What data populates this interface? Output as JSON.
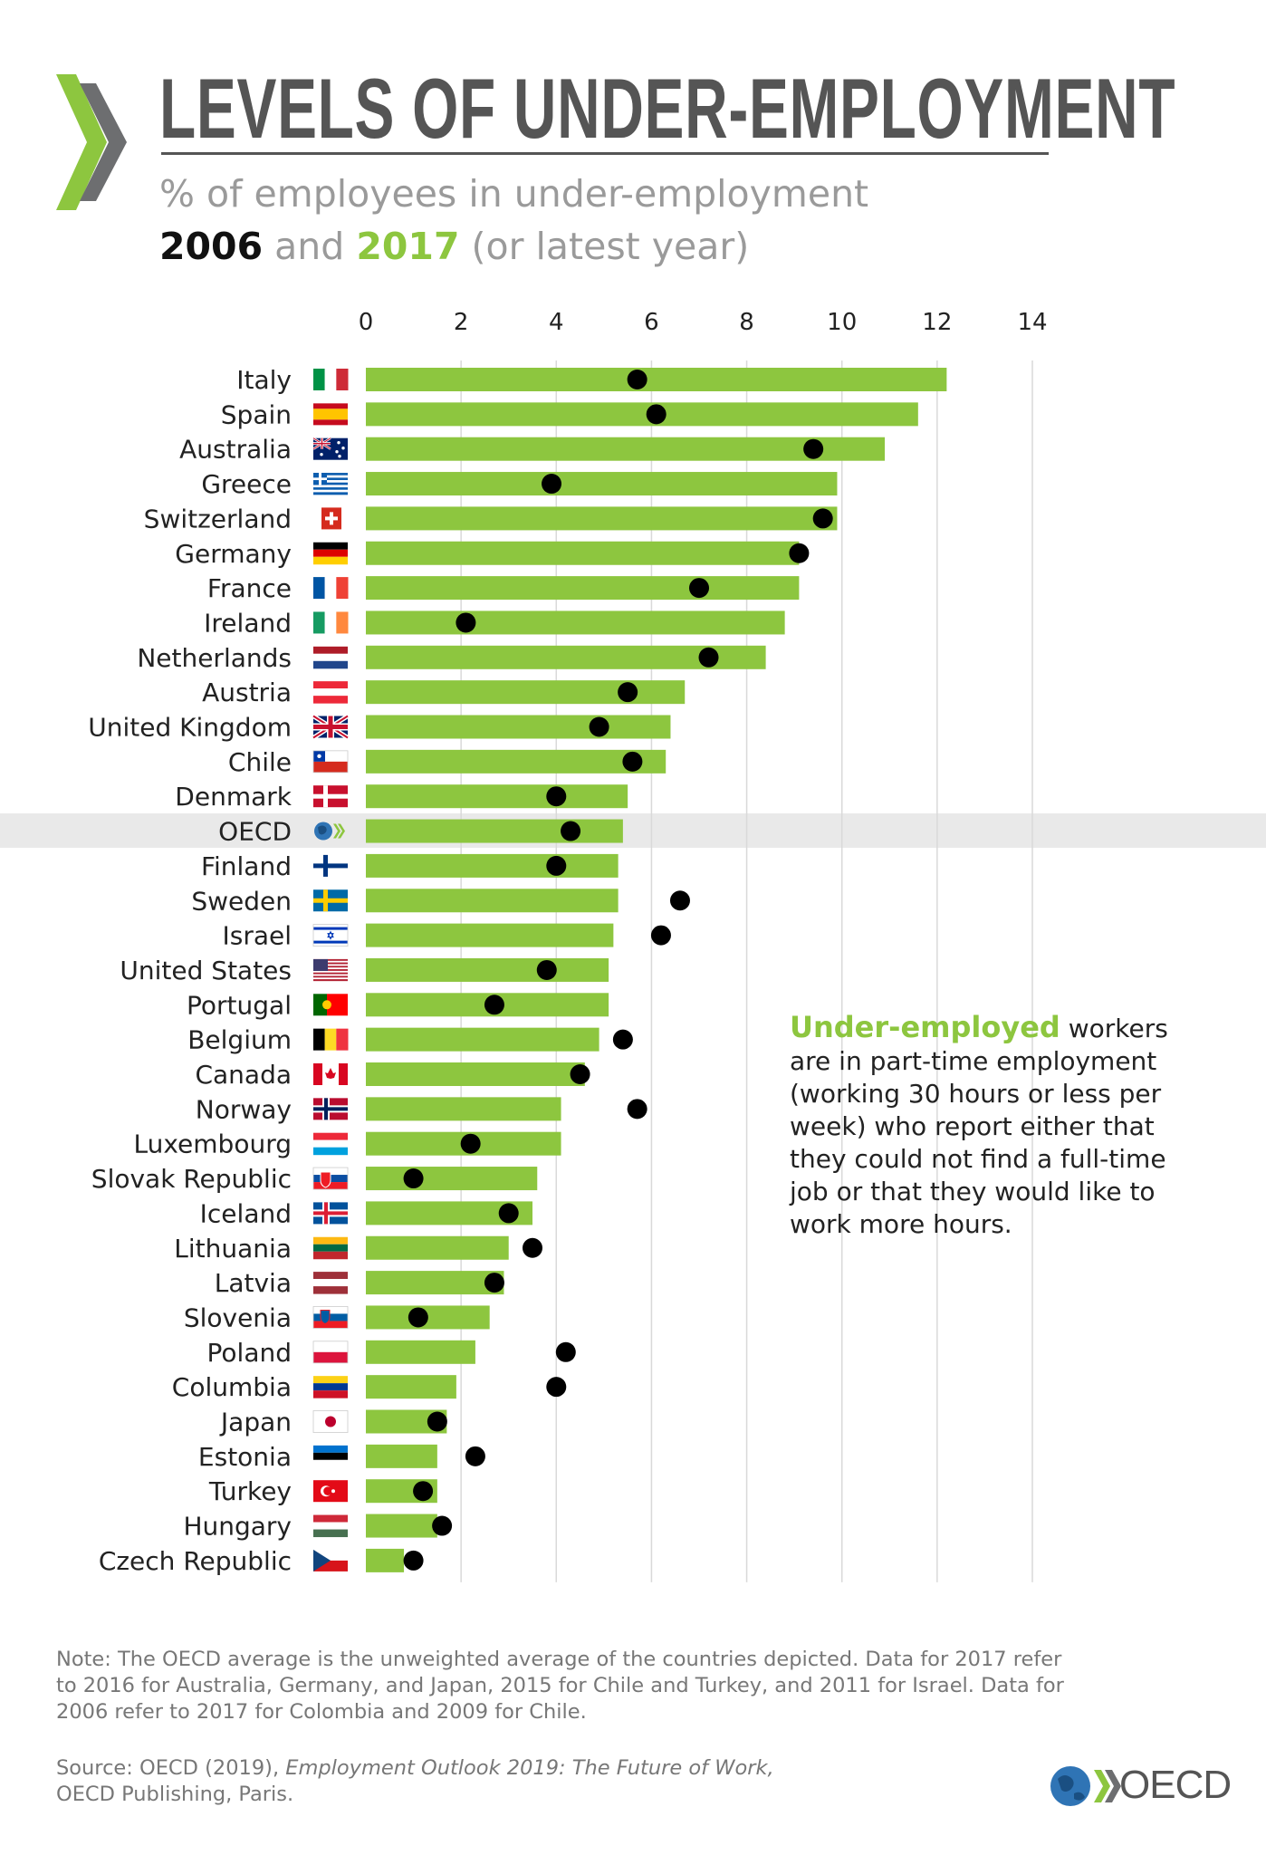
{
  "header": {
    "title": "LEVELS OF UNDER-EMPLOYMENT",
    "subtitle": "% of employees in under-employment",
    "year_a": "2006",
    "and": "and",
    "year_b": "2017",
    "latest": "(or latest year)"
  },
  "colors": {
    "bar_2017": "#8dc63f",
    "dot_2006": "#000000",
    "accent": "#8dc63f",
    "grid": "#d9d9d9"
  },
  "chart_data": {
    "type": "bar",
    "orientation": "horizontal",
    "xlim": [
      0,
      14
    ],
    "xticks": [
      "0",
      "2",
      "4",
      "6",
      "8",
      "10",
      "12",
      "14"
    ],
    "highlight": "OECD",
    "categories": [
      "Italy",
      "Spain",
      "Australia",
      "Greece",
      "Switzerland",
      "Germany",
      "France",
      "Ireland",
      "Netherlands",
      "Austria",
      "United Kingdom",
      "Chile",
      "Denmark",
      "OECD",
      "Finland",
      "Sweden",
      "Israel",
      "United States",
      "Portugal",
      "Belgium",
      "Canada",
      "Norway",
      "Luxembourg",
      "Slovak Republic",
      "Iceland",
      "Lithuania",
      "Latvia",
      "Slovenia",
      "Poland",
      "Columbia",
      "Japan",
      "Estonia",
      "Turkey",
      "Hungary",
      "Czech Republic"
    ],
    "series": [
      {
        "name": "2017",
        "style": "bar",
        "values": [
          12.2,
          11.6,
          10.9,
          9.9,
          9.9,
          9.1,
          9.1,
          8.8,
          8.4,
          6.7,
          6.4,
          6.3,
          5.5,
          5.4,
          5.3,
          5.3,
          5.2,
          5.1,
          5.1,
          4.9,
          4.6,
          4.1,
          4.1,
          3.6,
          3.5,
          3.0,
          2.9,
          2.6,
          2.3,
          1.9,
          1.7,
          1.5,
          1.5,
          1.5,
          0.8
        ]
      },
      {
        "name": "2006",
        "style": "dot",
        "values": [
          5.7,
          6.1,
          9.4,
          3.9,
          9.6,
          9.1,
          7.0,
          2.1,
          7.2,
          5.5,
          4.9,
          5.6,
          4.0,
          4.3,
          4.0,
          6.6,
          6.2,
          3.8,
          2.7,
          5.4,
          4.5,
          5.7,
          2.2,
          1.0,
          3.0,
          3.5,
          2.7,
          1.1,
          4.2,
          4.0,
          1.5,
          2.3,
          1.2,
          1.6,
          1.0
        ]
      }
    ]
  },
  "definition": {
    "highlight": "Under-employed",
    "text": " workers are in part-time employment (working 30 hours or less per week) who report either that they could not find a full-time job or that they would like to work more hours."
  },
  "footer": {
    "note": "Note: The OECD average is the unweighted average of the countries depicted. Data for 2017 refer to 2016 for Australia, Germany, and Japan, 2015 for Chile and Turkey, and 2011 for Israel. Data for 2006 refer to 2017 for Colombia and 2009 for Chile.",
    "source_prefix": "Source: OECD (2019), ",
    "source_title": "Employment Outlook 2019: The Future of Work,",
    "source_suffix": "OECD Publishing, Paris.",
    "logo_text": "OECD"
  },
  "flags": {
    "Italy": [
      "v",
      "#009246",
      "#ffffff",
      "#ce2b37"
    ],
    "Spain": [
      "h3",
      "#c60b1e",
      "#ffc400",
      "#c60b1e"
    ],
    "Australia": [
      "special-au"
    ],
    "Greece": [
      "stripes",
      "#0d5eaf",
      "#ffffff"
    ],
    "Switzerland": [
      "special-ch"
    ],
    "Germany": [
      "h",
      "#000000",
      "#dd0000",
      "#ffce00"
    ],
    "France": [
      "v",
      "#0055a4",
      "#ffffff",
      "#ef4135"
    ],
    "Ireland": [
      "v",
      "#169b62",
      "#ffffff",
      "#ff883e"
    ],
    "Netherlands": [
      "h",
      "#ae1c28",
      "#ffffff",
      "#21468b"
    ],
    "Austria": [
      "h",
      "#ed2939",
      "#ffffff",
      "#ed2939"
    ],
    "United Kingdom": [
      "special-uk"
    ],
    "Chile": [
      "special-cl"
    ],
    "Denmark": [
      "cross",
      "#c8102e",
      "#ffffff"
    ],
    "OECD": [
      "special-oecd"
    ],
    "Finland": [
      "cross",
      "#ffffff",
      "#003580"
    ],
    "Sweden": [
      "cross",
      "#006aa7",
      "#fecc00"
    ],
    "Israel": [
      "special-il"
    ],
    "United States": [
      "special-us"
    ],
    "Portugal": [
      "special-pt"
    ],
    "Belgium": [
      "v",
      "#000000",
      "#fdda24",
      "#ef3340"
    ],
    "Canada": [
      "special-ca"
    ],
    "Norway": [
      "cross2",
      "#ba0c2f",
      "#ffffff",
      "#00205b"
    ],
    "Luxembourg": [
      "h",
      "#ed2939",
      "#ffffff",
      "#00a1de"
    ],
    "Slovak Republic": [
      "special-sk"
    ],
    "Iceland": [
      "cross2",
      "#02529c",
      "#ffffff",
      "#dc1e35"
    ],
    "Lithuania": [
      "h",
      "#fdb913",
      "#006a44",
      "#c1272d"
    ],
    "Latvia": [
      "h",
      "#9e3039",
      "#ffffff",
      "#9e3039"
    ],
    "Slovenia": [
      "special-si"
    ],
    "Poland": [
      "h2",
      "#ffffff",
      "#dc143c"
    ],
    "Columbia": [
      "h",
      "#fcd116",
      "#003893",
      "#ce1126"
    ],
    "Japan": [
      "special-jp"
    ],
    "Estonia": [
      "h",
      "#0072ce",
      "#000000",
      "#ffffff"
    ],
    "Turkey": [
      "special-tr"
    ],
    "Hungary": [
      "h",
      "#ce2939",
      "#ffffff",
      "#477050"
    ],
    "Czech Republic": [
      "special-cz"
    ]
  }
}
